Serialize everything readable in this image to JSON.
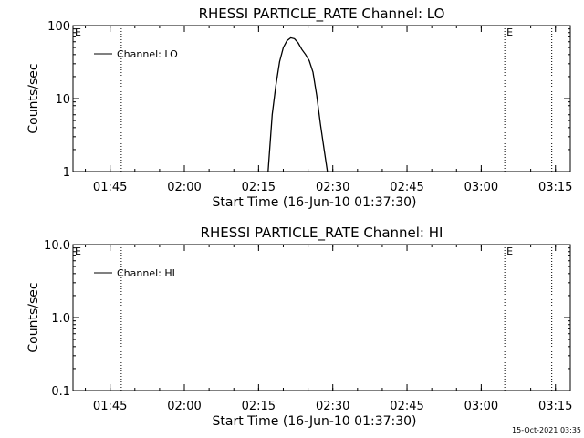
{
  "chart_data": [
    {
      "type": "line",
      "title": "RHESSI PARTICLE_RATE Channel: LO",
      "xlabel": "Start Time (16-Jun-10 01:37:30)",
      "ylabel": "Counts/sec",
      "y_scale": "log",
      "ylim": [
        1,
        100
      ],
      "y_ticks": [
        "1",
        "10",
        "100"
      ],
      "xlim": [
        "01:37:30",
        "03:18:00"
      ],
      "x_ticks": [
        "01:45",
        "02:00",
        "02:15",
        "02:30",
        "02:45",
        "03:00",
        "03:15"
      ],
      "legend": {
        "placement": "top-left",
        "entries": [
          "Channel: LO"
        ]
      },
      "markers": [
        {
          "time": "01:37:30",
          "label": "E"
        },
        {
          "time": "03:04:45",
          "label": "E"
        }
      ],
      "dotted_lines": [
        "01:47:15",
        "03:04:45",
        "03:14:15"
      ],
      "series": [
        {
          "name": "Channel: LO",
          "x": [
            "02:16:55",
            "02:17:45",
            "02:18:30",
            "02:19:15",
            "02:20:00",
            "02:20:45",
            "02:21:30",
            "02:22:15",
            "02:23:00",
            "02:23:45",
            "02:24:30",
            "02:25:15",
            "02:26:00",
            "02:26:45",
            "02:27:30",
            "02:28:15",
            "02:28:55"
          ],
          "values": [
            1.0,
            6.0,
            15.0,
            32.0,
            50.0,
            62.0,
            68.0,
            66.0,
            58.0,
            47.0,
            40.0,
            33.0,
            23.0,
            11.0,
            4.5,
            2.0,
            1.0
          ]
        }
      ]
    },
    {
      "type": "line",
      "title": "RHESSI PARTICLE_RATE Channel: HI",
      "xlabel": "Start Time (16-Jun-10 01:37:30)",
      "ylabel": "Counts/sec",
      "y_scale": "log",
      "ylim": [
        0.1,
        10.0
      ],
      "y_ticks": [
        "0.1",
        "1.0",
        "10.0"
      ],
      "xlim": [
        "01:37:30",
        "03:18:00"
      ],
      "x_ticks": [
        "01:45",
        "02:00",
        "02:15",
        "02:30",
        "02:45",
        "03:00",
        "03:15"
      ],
      "legend": {
        "placement": "top-left",
        "entries": [
          "Channel: HI"
        ]
      },
      "markers": [
        {
          "time": "01:37:30",
          "label": "E"
        },
        {
          "time": "03:04:45",
          "label": "E"
        }
      ],
      "dotted_lines": [
        "01:47:15",
        "03:04:45",
        "03:14:15"
      ],
      "series": [
        {
          "name": "Channel: HI",
          "x": [],
          "values": []
        }
      ]
    }
  ],
  "footer": {
    "timestamp": "15-Oct-2021 03:35"
  },
  "colors": {
    "background": "#ffffff",
    "foreground": "#000000"
  }
}
